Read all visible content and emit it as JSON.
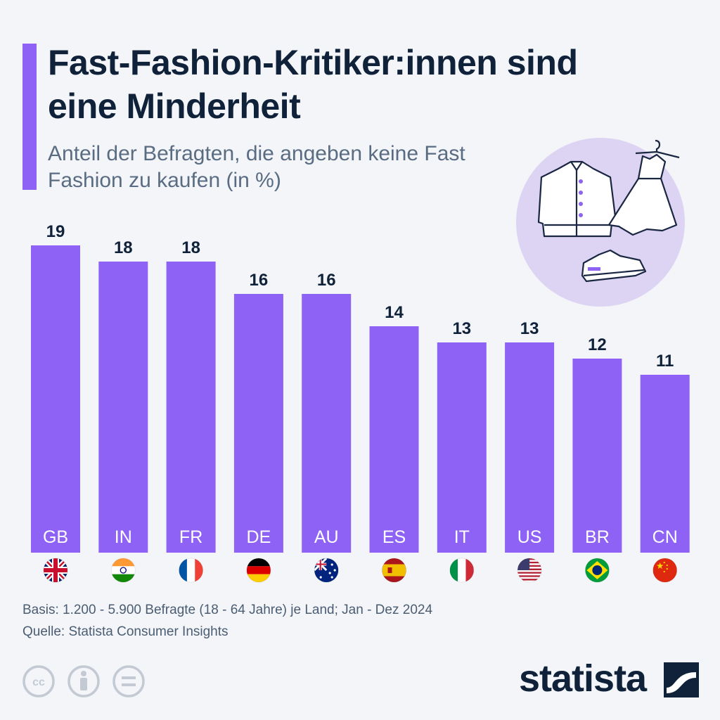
{
  "header": {
    "title": "Fast-Fashion-Kritiker:innen sind eine Minderheit",
    "subtitle": "Anteil der Befragten, die angeben keine Fast Fashion zu kaufen (in %)"
  },
  "chart_data": {
    "type": "bar",
    "title": "Fast-Fashion-Kritiker:innen sind eine Minderheit",
    "subtitle": "Anteil der Befragten, die angeben keine Fast Fashion zu kaufen (in %)",
    "categories": [
      "GB",
      "IN",
      "FR",
      "DE",
      "AU",
      "ES",
      "IT",
      "US",
      "BR",
      "CN"
    ],
    "values": [
      19,
      18,
      18,
      16,
      16,
      14,
      13,
      13,
      12,
      11
    ],
    "flags": [
      "flag-uk-icon",
      "flag-india-icon",
      "flag-france-icon",
      "flag-germany-icon",
      "flag-australia-icon",
      "flag-spain-icon",
      "flag-italy-icon",
      "flag-usa-icon",
      "flag-brazil-icon",
      "flag-china-icon"
    ],
    "bar_color": "#8d62f5",
    "grid": false,
    "data_labels": true
  },
  "footer": {
    "basis": "Basis: 1.200 - 5.900 Befragte (18 - 64 Jahre) je Land; Jan - Dez 2024",
    "source": "Quelle: Statista Consumer Insights",
    "logo_text": "statista"
  },
  "colors": {
    "accent": "#8d62f5",
    "title": "#0f2239",
    "subtitle": "#5a6c82",
    "background": "#f3f5f9",
    "illustration_circle": "#ddd4f3"
  },
  "icons": {
    "illustration": [
      "jacket-icon",
      "dress-icon",
      "sneaker-icon",
      "hanger-icon"
    ],
    "license": [
      "cc-icon",
      "attribution-icon",
      "no-derivatives-icon"
    ]
  }
}
